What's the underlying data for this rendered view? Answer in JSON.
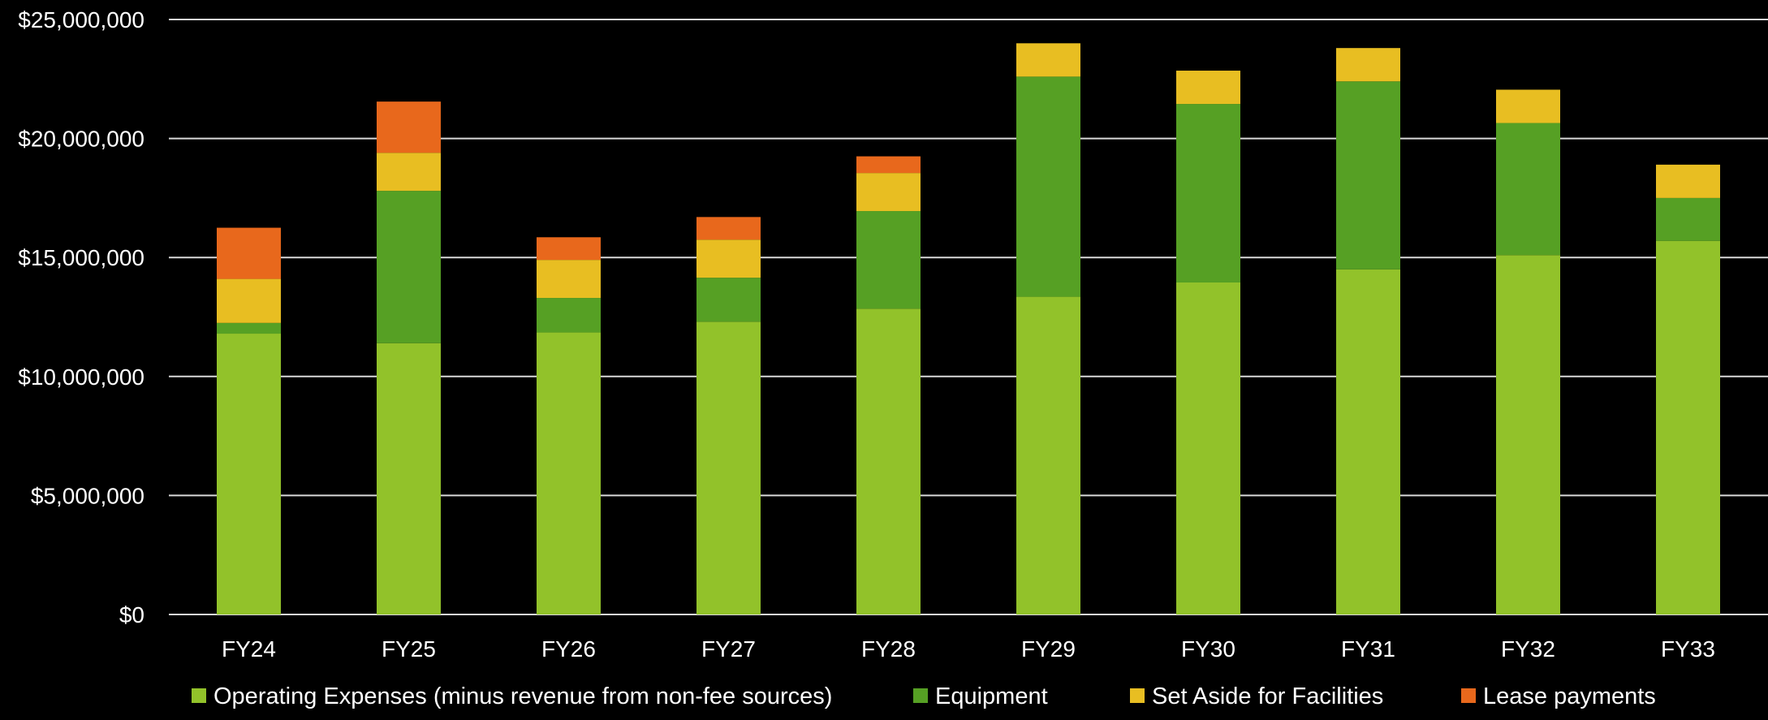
{
  "chart_data": {
    "type": "bar",
    "stacked": true,
    "title": "",
    "xlabel": "",
    "ylabel": "",
    "categories": [
      "FY24",
      "FY25",
      "FY26",
      "FY27",
      "FY28",
      "FY29",
      "FY30",
      "FY31",
      "FY32",
      "FY33"
    ],
    "ylim": [
      0,
      25000000
    ],
    "yticks": [
      0,
      5000000,
      10000000,
      15000000,
      20000000,
      25000000
    ],
    "ytick_labels": [
      "$0",
      "$5,000,000",
      "$10,000,000",
      "$15,000,000",
      "$20,000,000",
      "$25,000,000"
    ],
    "grid": true,
    "legend_position": "bottom",
    "series": [
      {
        "name": "Operating Expenses (minus revenue from non-fee sources)",
        "color": "#92C22A",
        "values": [
          11800000,
          11400000,
          11850000,
          12300000,
          12850000,
          13350000,
          13950000,
          14500000,
          15100000,
          15700000
        ]
      },
      {
        "name": "Equipment",
        "color": "#56A024",
        "values": [
          450000,
          6400000,
          1450000,
          1850000,
          4100000,
          9250000,
          7500000,
          7900000,
          5550000,
          1800000
        ]
      },
      {
        "name": "Set Aside for Facilities",
        "color": "#E8BE22",
        "values": [
          1850000,
          1600000,
          1600000,
          1600000,
          1600000,
          1400000,
          1400000,
          1400000,
          1400000,
          1400000
        ]
      },
      {
        "name": "Lease payments",
        "color": "#E8681C",
        "values": [
          2150000,
          2150000,
          950000,
          950000,
          700000,
          0,
          0,
          0,
          0,
          0
        ]
      }
    ]
  }
}
